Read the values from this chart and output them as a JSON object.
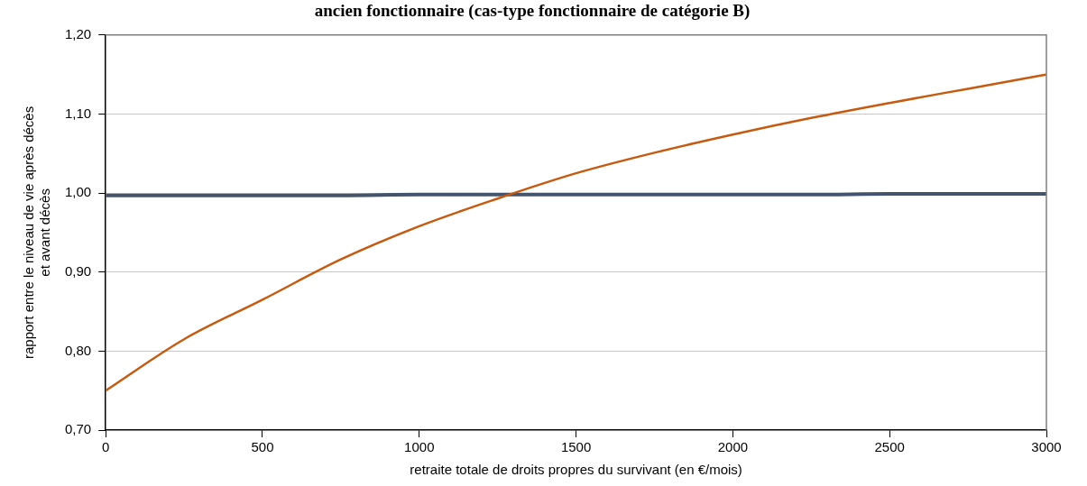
{
  "chart_data": {
    "type": "line",
    "title": "ancien fonctionnaire (cas-type fonctionnaire de catégorie B)",
    "xlabel": "retraite totale de droits propres du survivant (en €/mois)",
    "ylabel": "rapport entre le niveau de vie après décès\net avant décès",
    "x": [
      0,
      250,
      500,
      750,
      1000,
      1250,
      1500,
      1750,
      2000,
      2250,
      2500,
      2750,
      3000
    ],
    "series": [
      {
        "color": "#c55a11",
        "values": [
          0.75,
          0.815,
          0.865,
          0.916,
          0.958,
          0.993,
          1.025,
          1.051,
          1.074,
          1.095,
          1.114,
          1.132,
          1.15
        ]
      },
      {
        "color": "#44546a",
        "values": [
          0.997,
          0.997,
          0.997,
          0.997,
          0.998,
          0.998,
          0.998,
          0.998,
          0.998,
          0.998,
          0.999,
          0.999,
          0.999
        ]
      }
    ],
    "xlim": [
      0,
      3000
    ],
    "xticks": [
      0,
      500,
      1000,
      1500,
      2000,
      2500,
      3000
    ],
    "ylim": [
      0.7,
      1.2
    ],
    "yticks": [
      {
        "value": 0.7,
        "label": "0,70"
      },
      {
        "value": 0.8,
        "label": "0,80"
      },
      {
        "value": 0.9,
        "label": "0,90"
      },
      {
        "value": 1.0,
        "label": "1,00"
      },
      {
        "value": 1.1,
        "label": "1,10"
      },
      {
        "value": 1.2,
        "label": "1,20"
      }
    ],
    "grid": "y",
    "legend": false,
    "marker": "none",
    "line_style": "solid"
  }
}
